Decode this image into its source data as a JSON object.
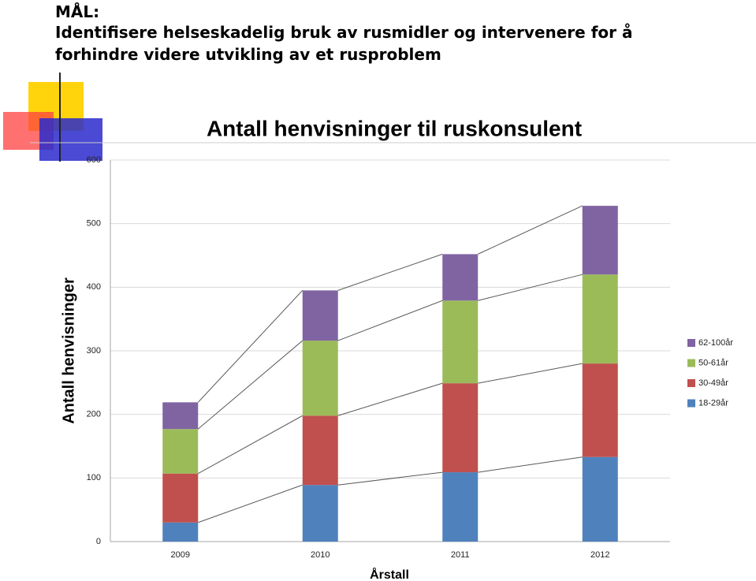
{
  "slide": {
    "heading": "MÅL:",
    "goal_lines": [
      "Identifisere helseskadelig bruk av rusmidler og intervenere for å",
      "forhindre videre utvikling av et rusproblem"
    ]
  },
  "chart_data": {
    "type": "stacked_bar",
    "title": "Antall henvisninger til ruskonsulent",
    "x_label": "Årstall",
    "y_label": "Antall henvisninger",
    "categories": [
      "2009",
      "2010",
      "2011",
      "2012"
    ],
    "series": [
      {
        "name": "18-29år",
        "color": "#4f81bd",
        "values": [
          30,
          89,
          109,
          133
        ]
      },
      {
        "name": "30-49år",
        "color": "#c0504d",
        "values": [
          77,
          109,
          140,
          147
        ]
      },
      {
        "name": "50-61år",
        "color": "#9bbb59",
        "values": [
          70,
          118,
          130,
          140
        ]
      },
      {
        "name": "62-100år",
        "color": "#8064a2",
        "values": [
          42,
          79,
          73,
          108
        ]
      }
    ],
    "ylim": [
      0,
      600
    ],
    "yticks": [
      0,
      100,
      200,
      300,
      400,
      500,
      600
    ],
    "grid": true,
    "series_lines": true,
    "legend": "right"
  }
}
